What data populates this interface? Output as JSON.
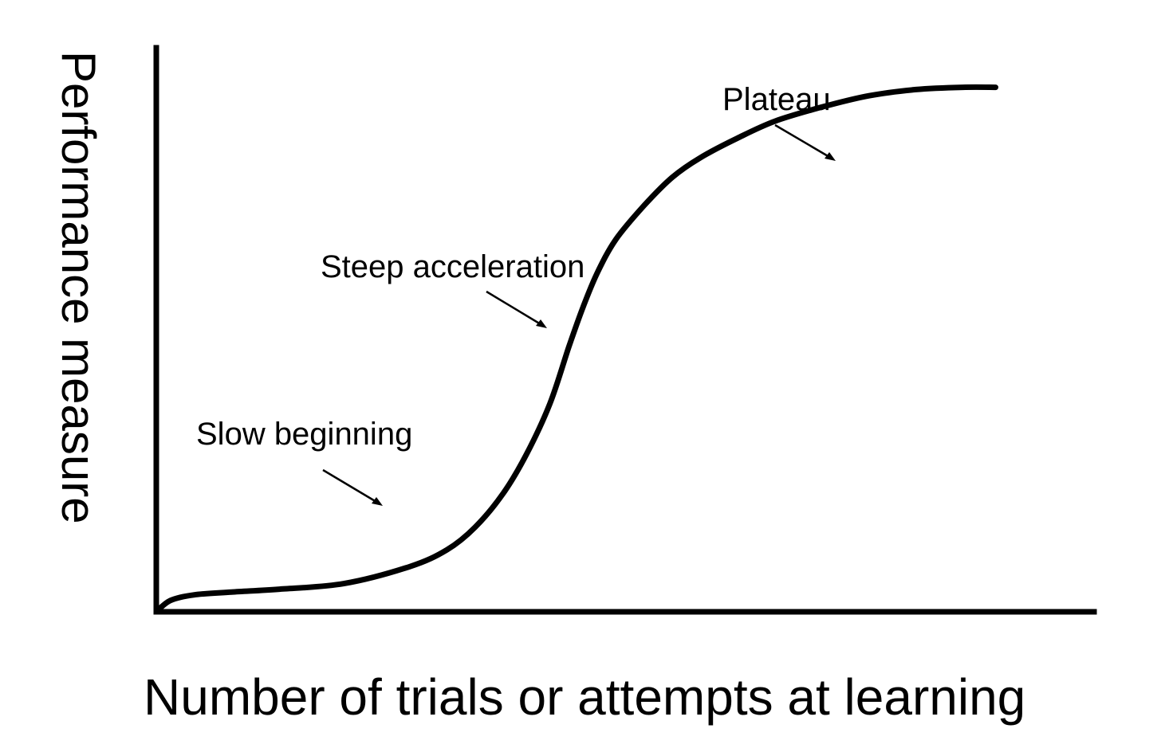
{
  "chart_data": {
    "type": "line",
    "title": "",
    "xlabel": "Number of trials or attempts at learning",
    "ylabel": "Performance measure",
    "grid": false,
    "ticks": false,
    "xlim": [
      0,
      100
    ],
    "ylim": [
      0,
      100
    ],
    "series": [
      {
        "color": "#000000",
        "x": [
          0,
          1.5,
          4,
          8,
          13,
          20,
          27,
          31,
          34,
          37,
          39.5,
          42,
          44,
          45.5,
          47,
          49,
          52,
          55,
          58,
          62,
          66,
          71,
          76,
          81,
          86,
          89.5
        ],
        "y": [
          0,
          2,
          3,
          3.5,
          4,
          5,
          8,
          11,
          15,
          21,
          28,
          37,
          47,
          54,
          60,
          66,
          72,
          77,
          80.5,
          84,
          87,
          89.5,
          91.5,
          92.6,
          93,
          93
        ]
      }
    ],
    "annotations": [
      {
        "text": "Slow beginning",
        "target_x": 24,
        "target_y": 19
      },
      {
        "text": "Steep acceleration",
        "target_x": 41.5,
        "target_y": 50
      },
      {
        "text": "Plateau",
        "target_x": 72,
        "target_y": 80.5
      }
    ]
  }
}
